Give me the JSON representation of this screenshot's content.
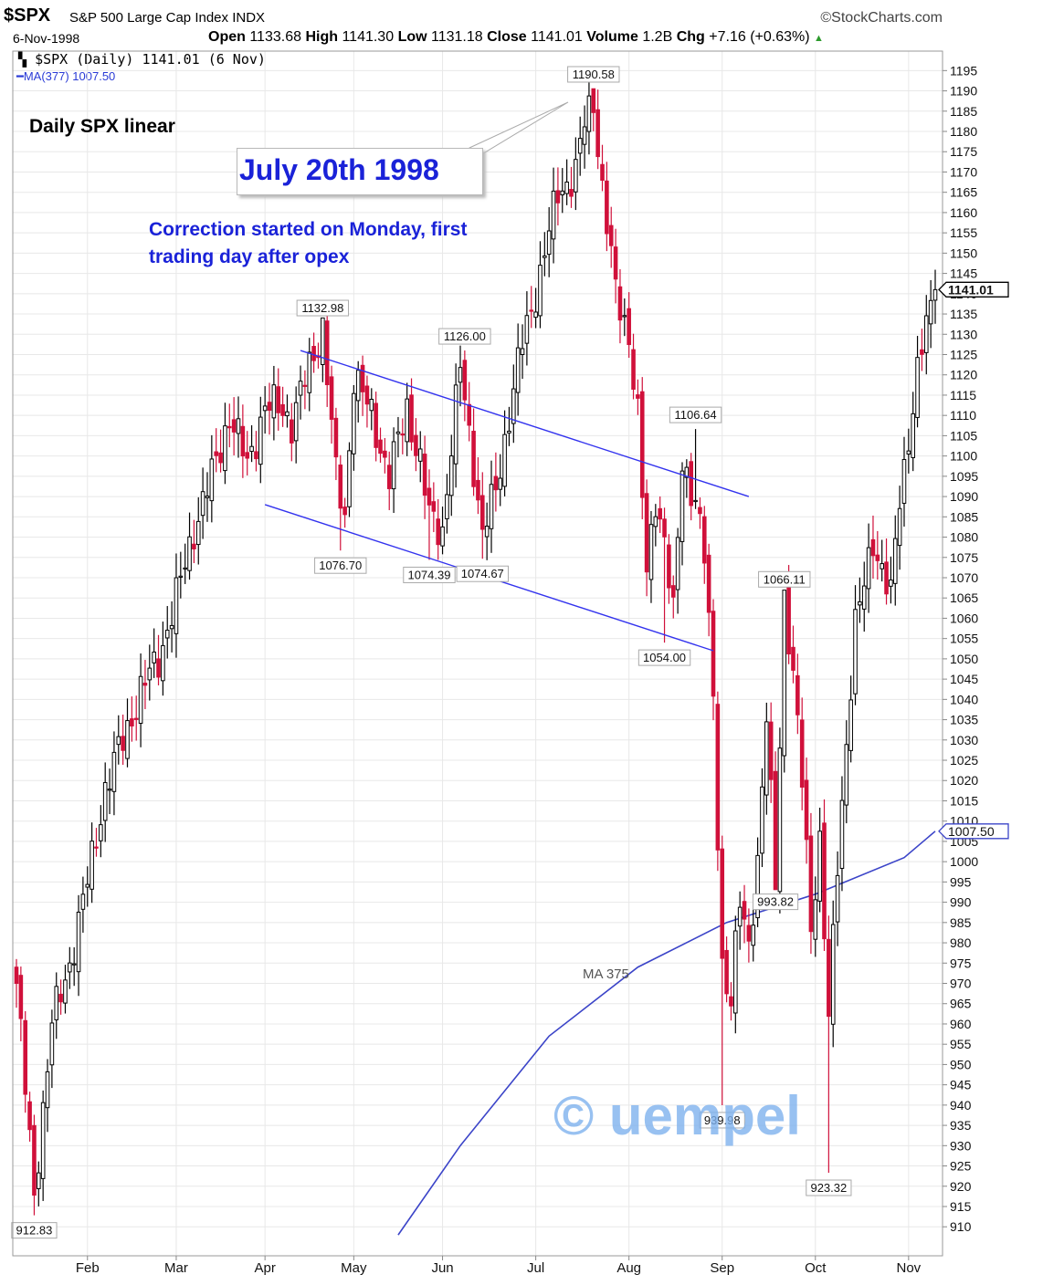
{
  "header": {
    "symbol": "$SPX",
    "name": "S&P 500 Large Cap Index",
    "exchange": "INDX",
    "brand": "©StockCharts.com",
    "date": "6-Nov-1998",
    "open_label": "Open",
    "open": "1133.68",
    "high_label": "High",
    "high": "1141.30",
    "low_label": "Low",
    "low": "1131.18",
    "close_label": "Close",
    "close": "1141.01",
    "volume_label": "Volume",
    "volume": "1.2B",
    "chg_label": "Chg",
    "chg": "+7.16 (+0.63%)"
  },
  "legend": {
    "price": "$SPX (Daily) 1141.01 (6 Nov)",
    "ma": "MA(377) 1007.50"
  },
  "annotations": {
    "daily": "Daily SPX linear",
    "callout": "July 20th 1998",
    "note_line1": "Correction started on Monday, first",
    "note_line2": "trading day after opex",
    "ma_label": "MA 375",
    "watermark": "© uempel"
  },
  "colors": {
    "up": "#000000",
    "down": "#d0103a",
    "ma": "#3b44c8",
    "channel": "#3333ee",
    "annotation": "#1a22d8"
  },
  "chart_data": {
    "type": "candlestick",
    "title": "",
    "ylim": [
      906,
      1198
    ],
    "y_ticks": [
      910,
      915,
      920,
      925,
      930,
      935,
      940,
      945,
      950,
      955,
      960,
      965,
      970,
      975,
      980,
      985,
      990,
      995,
      1000,
      1005,
      1010,
      1015,
      1020,
      1025,
      1030,
      1035,
      1040,
      1045,
      1050,
      1055,
      1060,
      1065,
      1070,
      1075,
      1080,
      1085,
      1090,
      1095,
      1100,
      1105,
      1110,
      1115,
      1120,
      1125,
      1130,
      1135,
      1140,
      1145,
      1150,
      1155,
      1160,
      1165,
      1170,
      1175,
      1180,
      1185,
      1190,
      1195
    ],
    "x_ticks": [
      "Feb",
      "Mar",
      "Apr",
      "May",
      "Jun",
      "Jul",
      "Aug",
      "Sep",
      "Oct",
      "Nov"
    ],
    "x_tick_days": [
      16,
      36,
      56,
      76,
      96,
      117,
      138,
      159,
      180,
      201
    ],
    "num_days": 208,
    "price_anchors": [
      [
        0,
        970
      ],
      [
        4,
        918
      ],
      [
        8,
        960
      ],
      [
        12,
        975
      ],
      [
        16,
        995
      ],
      [
        20,
        1018
      ],
      [
        24,
        1030
      ],
      [
        28,
        1042
      ],
      [
        32,
        1050
      ],
      [
        36,
        1065
      ],
      [
        40,
        1082
      ],
      [
        44,
        1095
      ],
      [
        48,
        1110
      ],
      [
        52,
        1098
      ],
      [
        56,
        1112
      ],
      [
        60,
        1112
      ],
      [
        62,
        1108
      ],
      [
        66,
        1122
      ],
      [
        69,
        1132
      ],
      [
        72,
        1095
      ],
      [
        74,
        1085
      ],
      [
        76,
        1120
      ],
      [
        80,
        1110
      ],
      [
        84,
        1095
      ],
      [
        88,
        1112
      ],
      [
        91,
        1098
      ],
      [
        93,
        1085
      ],
      [
        96,
        1082
      ],
      [
        100,
        1122
      ],
      [
        103,
        1098
      ],
      [
        105,
        1080
      ],
      [
        108,
        1092
      ],
      [
        111,
        1110
      ],
      [
        114,
        1128
      ],
      [
        118,
        1145
      ],
      [
        122,
        1165
      ],
      [
        126,
        1170
      ],
      [
        128,
        1182
      ],
      [
        130,
        1188
      ],
      [
        132,
        1166
      ],
      [
        135,
        1140
      ],
      [
        138,
        1130
      ],
      [
        140,
        1110
      ],
      [
        142,
        1070
      ],
      [
        144,
        1090
      ],
      [
        146,
        1080
      ],
      [
        148,
        1060
      ],
      [
        150,
        1098
      ],
      [
        153,
        1090
      ],
      [
        155,
        1075
      ],
      [
        157,
        1040
      ],
      [
        159,
        975
      ],
      [
        161,
        965
      ],
      [
        163,
        990
      ],
      [
        165,
        980
      ],
      [
        167,
        1000
      ],
      [
        169,
        1035
      ],
      [
        171,
        995
      ],
      [
        173,
        1066
      ],
      [
        175,
        1045
      ],
      [
        177,
        1020
      ],
      [
        179,
        985
      ],
      [
        181,
        1005
      ],
      [
        183,
        960
      ],
      [
        185,
        1000
      ],
      [
        187,
        1030
      ],
      [
        189,
        1058
      ],
      [
        191,
        1068
      ],
      [
        193,
        1080
      ],
      [
        195,
        1072
      ],
      [
        197,
        1065
      ],
      [
        199,
        1090
      ],
      [
        201,
        1105
      ],
      [
        203,
        1120
      ],
      [
        205,
        1132
      ],
      [
        207,
        1141
      ]
    ],
    "extremes": [
      {
        "day": 4,
        "value": 912.83,
        "kind": "low",
        "label": "912.83"
      },
      {
        "day": 69,
        "value": 1132.98,
        "kind": "high",
        "label": "1132.98"
      },
      {
        "day": 73,
        "value": 1076.7,
        "kind": "low",
        "label": "1076.70"
      },
      {
        "day": 93,
        "value": 1074.39,
        "kind": "low",
        "label": "1074.39"
      },
      {
        "day": 101,
        "value": 1126.0,
        "kind": "high",
        "label": "1126.00"
      },
      {
        "day": 105,
        "value": 1074.67,
        "kind": "low",
        "label": "1074.67"
      },
      {
        "day": 130,
        "value": 1190.58,
        "kind": "high",
        "label": "1190.58"
      },
      {
        "day": 146,
        "value": 1054.0,
        "kind": "low",
        "label": "1054.00"
      },
      {
        "day": 153,
        "value": 1106.64,
        "kind": "high",
        "label": "1106.64"
      },
      {
        "day": 159,
        "value": 939.98,
        "kind": "low",
        "label": "939.98"
      },
      {
        "day": 173,
        "value": 1066.11,
        "kind": "high",
        "label": "1066.11"
      },
      {
        "day": 171,
        "value": 993.82,
        "kind": "low",
        "label": "993.82"
      },
      {
        "day": 183,
        "value": 923.32,
        "kind": "low",
        "label": "923.32"
      }
    ],
    "ma_series": {
      "name": "MA(377)",
      "points": [
        [
          86,
          908
        ],
        [
          100,
          930
        ],
        [
          120,
          957
        ],
        [
          140,
          974
        ],
        [
          160,
          985
        ],
        [
          180,
          992
        ],
        [
          200,
          1001
        ],
        [
          207,
          1007.5
        ]
      ]
    },
    "channel_lines": [
      {
        "from": [
          64,
          1126
        ],
        "to": [
          165,
          1090
        ]
      },
      {
        "from": [
          56,
          1088
        ],
        "to": [
          157,
          1052
        ]
      }
    ],
    "last_value": {
      "label": "1141.01",
      "value": 1141.01
    },
    "ma_last_value": {
      "label": "1007.50",
      "value": 1007.5
    }
  }
}
